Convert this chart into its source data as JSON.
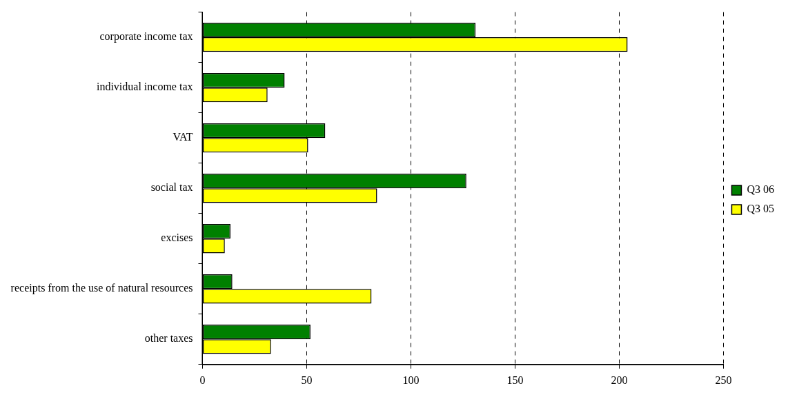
{
  "chart_data": {
    "type": "bar",
    "orientation": "horizontal",
    "categories": [
      "corporate income tax",
      "individual income tax",
      "VAT",
      "social tax",
      "excises",
      "receipts from the use of natural resources",
      "other taxes"
    ],
    "series": [
      {
        "name": "Q3 06",
        "color": "#008000",
        "values": [
          131,
          39.4,
          58.9,
          126.6,
          13.4,
          14.3,
          51.8
        ]
      },
      {
        "name": "Q3 05",
        "color": "#ffff00",
        "values": [
          204,
          31.2,
          50.7,
          83.8,
          10.7,
          81.1,
          32.9
        ]
      }
    ],
    "xlim": [
      0,
      250
    ],
    "xticks": [
      0,
      50,
      100,
      150,
      200,
      250
    ],
    "grid": "x",
    "legend": "right"
  }
}
